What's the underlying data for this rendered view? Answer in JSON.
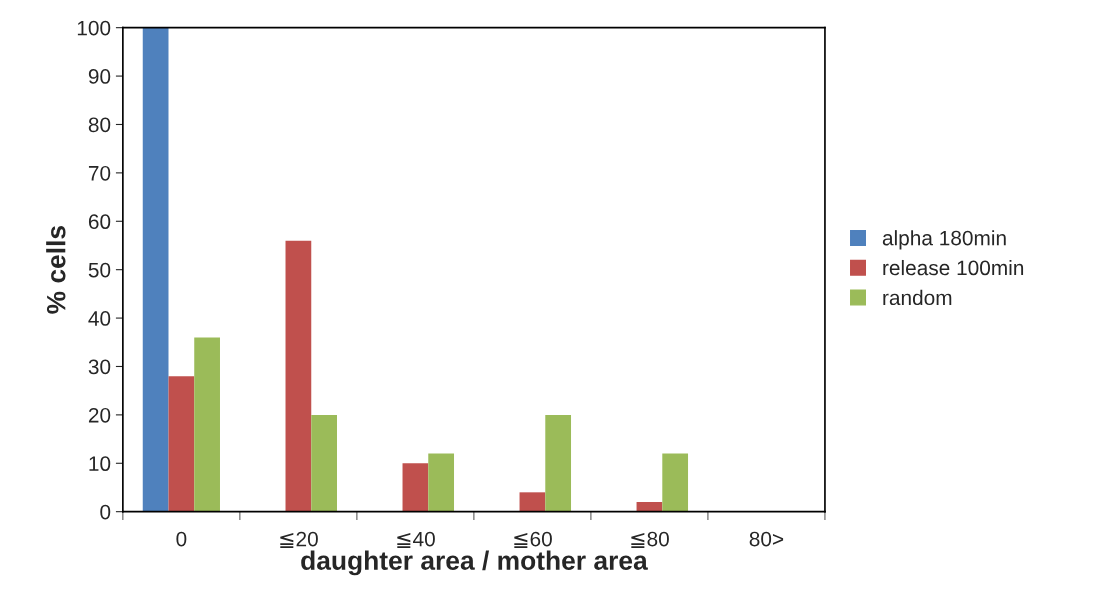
{
  "chart_data": {
    "type": "bar",
    "xlabel": "daughter area / mother area",
    "ylabel": "% cells",
    "categories": [
      "0",
      "≦20",
      "≦40",
      "≦60",
      "≦80",
      "80>"
    ],
    "series": [
      {
        "name": "alpha 180min",
        "color": "#4f81bd",
        "values": [
          100,
          0,
          0,
          0,
          0,
          0
        ]
      },
      {
        "name": "release 100min",
        "color": "#c0504d",
        "values": [
          28,
          56,
          10,
          4,
          2,
          0
        ]
      },
      {
        "name": "random",
        "color": "#9bbb59",
        "values": [
          36,
          20,
          12,
          20,
          12,
          0
        ]
      }
    ],
    "ylim": [
      0,
      100
    ],
    "yticks": [
      0,
      10,
      20,
      30,
      40,
      50,
      60,
      70,
      80,
      90,
      100
    ],
    "grid": false,
    "legend": "right"
  }
}
